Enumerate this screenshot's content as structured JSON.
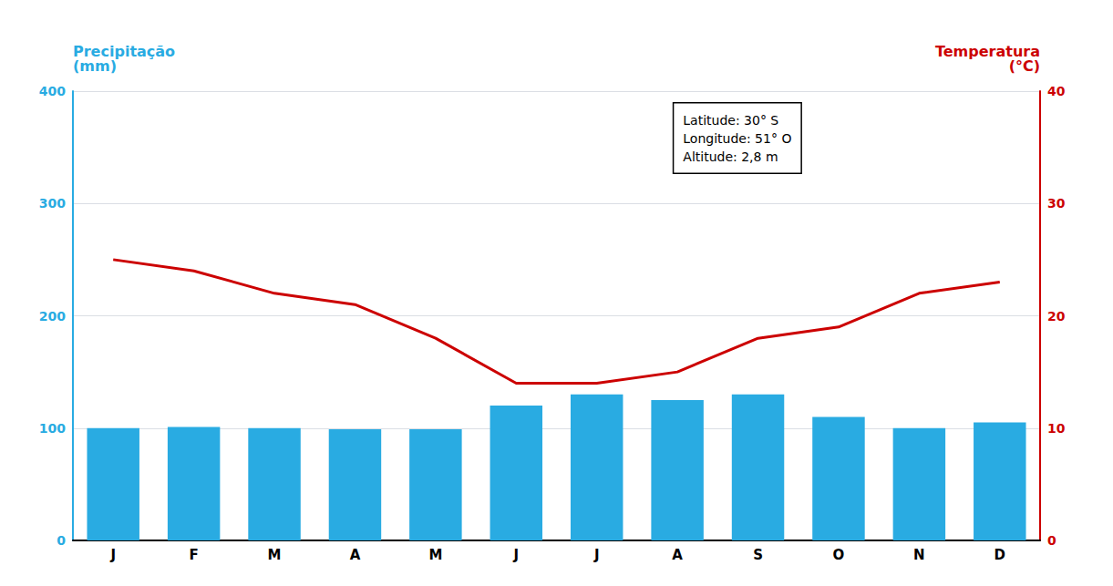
{
  "chart_data": {
    "type": "bar",
    "categories": [
      "J",
      "F",
      "M",
      "A",
      "M",
      "J",
      "J",
      "A",
      "S",
      "O",
      "N",
      "D"
    ],
    "series": [
      {
        "type": "bar",
        "color": "#29ABE2",
        "values": [
          100,
          101,
          100,
          99,
          99,
          120,
          130,
          125,
          130,
          110,
          100,
          105
        ]
      },
      {
        "type": "line",
        "color": "#CC0000",
        "axis": "y2",
        "values": [
          25,
          24,
          22,
          21,
          18,
          14,
          14,
          15,
          18,
          19,
          22,
          23
        ]
      }
    ],
    "ylabel": "Precipitação\n(mm)",
    "y2label": "Temperatura\n(°C)",
    "annotation": "Latitude: 30° S\nLongitude: 51° O\nAltitude: 2,8 m",
    "ylim": [
      0,
      400
    ],
    "yticks": [
      0,
      100,
      200,
      300,
      400
    ],
    "y2lim": [
      0,
      40
    ],
    "y2ticks": [
      0,
      10,
      20,
      30,
      40
    ],
    "grid": true
  }
}
